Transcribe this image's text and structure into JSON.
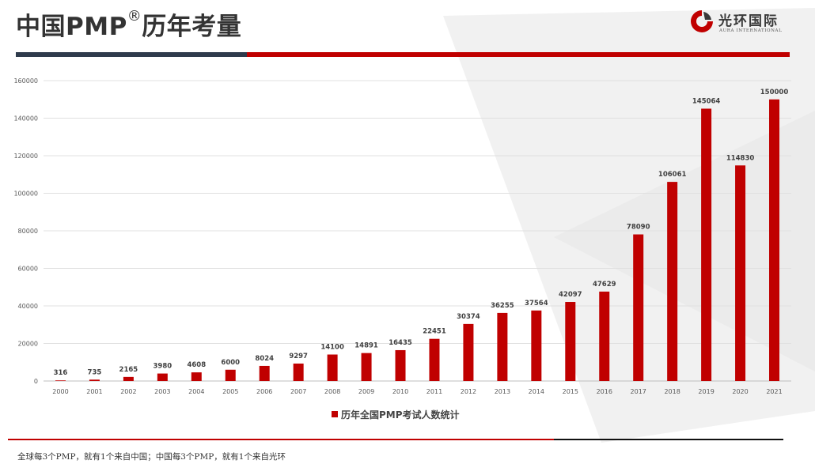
{
  "header": {
    "title": "中国PMP",
    "title_mark": "®",
    "title_suffix": "历年考量"
  },
  "brand": {
    "name": "光环国际",
    "subtitle": "AURA INTERNATIONAL",
    "icon": "aura-logo-icon"
  },
  "colors": {
    "accent": "#c00000",
    "dark": "#2f3b4c",
    "text": "#333333"
  },
  "chart_data": {
    "type": "bar",
    "categories": [
      "2000",
      "2001",
      "2002",
      "2003",
      "2004",
      "2005",
      "2006",
      "2007",
      "2008",
      "2009",
      "2010",
      "2011",
      "2012",
      "2013",
      "2014",
      "2015",
      "2016",
      "2017",
      "2018",
      "2019",
      "2020",
      "2021"
    ],
    "series": [
      {
        "name": "历年全国PMP考试人数统计",
        "values": [
          316,
          735,
          2165,
          3980,
          4608,
          6000,
          8024,
          9297,
          14100,
          14891,
          16435,
          22451,
          30374,
          36255,
          37564,
          42097,
          47629,
          78090,
          106061,
          145064,
          114830,
          150000
        ],
        "color": "#c00000"
      }
    ],
    "yticks": [
      0,
      20000,
      40000,
      60000,
      80000,
      100000,
      120000,
      140000,
      160000
    ],
    "ylim": [
      0,
      160000
    ],
    "grid": true,
    "legend_position": "bottom",
    "data_labels": true
  },
  "footer": {
    "note": "全球每3个PMP，就有1个来自中国；中国每3个PMP，就有1个来自光环"
  }
}
